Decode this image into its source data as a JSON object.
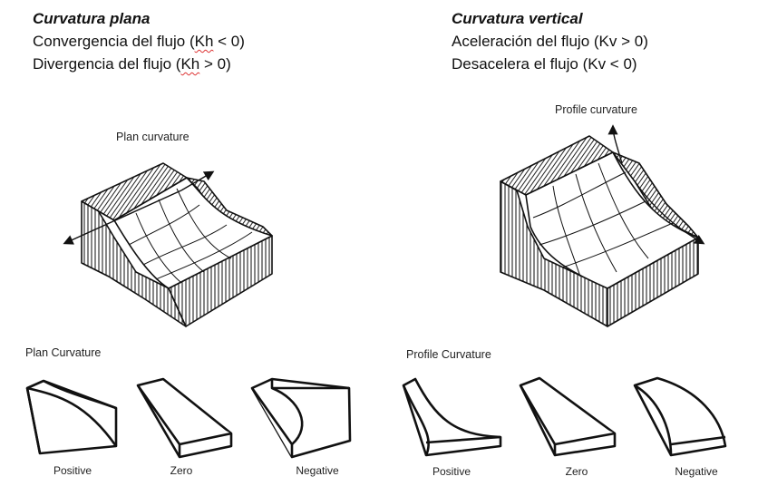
{
  "left": {
    "title": "Curvatura plana",
    "line1": {
      "prefix": "Convergencia del flujo (",
      "term": "Kh",
      "suffix": " < 0)"
    },
    "line2": {
      "prefix": "Divergencia del flujo (",
      "term": "Kh",
      "suffix": " > 0)"
    },
    "block_label": "Plan curvature",
    "shapes_title": "Plan Curvature",
    "captions": [
      "Positive",
      "Zero",
      "Negative"
    ]
  },
  "right": {
    "title": "Curvatura vertical",
    "line1": "Aceleración del flujo (Kv > 0)",
    "line2": "Desacelera el flujo (Kv < 0)",
    "block_label": "Profile curvature",
    "shapes_title": "Profile Curvature",
    "captions": [
      "Positive",
      "Zero",
      "Negative"
    ]
  }
}
